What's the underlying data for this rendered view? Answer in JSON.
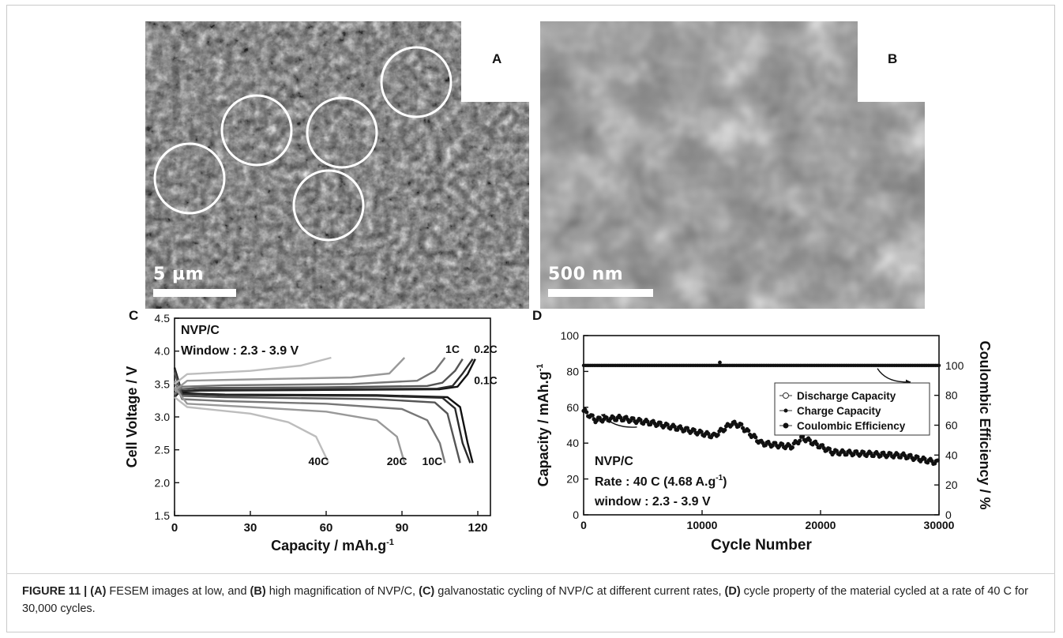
{
  "panels": {
    "a_letter": "A",
    "b_letter": "B",
    "c_letter": "C",
    "d_letter": "D",
    "a_scalebar": "5 µm",
    "b_scalebar": "500 nm"
  },
  "caption": {
    "label": "FIGURE 11 |",
    "seg1_bold": "(A)",
    "seg1_text": " FESEM images at low, and ",
    "seg2_bold": "(B)",
    "seg2_text": " high magnification of NVP/C, ",
    "seg3_bold": "(C)",
    "seg3_text": " galvanostatic cycling of NVP/C at different current rates, ",
    "seg4_bold": "(D)",
    "seg4_text": " cycle property of the material cycled at a rate of 40 C for 30,000 cycles."
  },
  "chart_data": [
    {
      "type": "line",
      "panel": "C",
      "annotation_line1": "NVP/C",
      "annotation_line2": "Window : 2.3 - 3.9 V",
      "xlabel": "Capacity / mAh.g",
      "xlabel_sup": "-1",
      "ylabel": "Cell Voltage / V",
      "xlim": [
        0,
        125
      ],
      "ylim": [
        1.5,
        4.5
      ],
      "xticks": [
        "0",
        "30",
        "60",
        "90",
        "120"
      ],
      "yticks": [
        "1.5",
        "2.0",
        "2.5",
        "3.0",
        "3.5",
        "4.0",
        "4.5"
      ],
      "series": [
        {
          "name": "0.1C",
          "color": "#111111",
          "charge": [
            [
              0,
              3.3
            ],
            [
              2,
              3.38
            ],
            [
              10,
              3.4
            ],
            [
              60,
              3.41
            ],
            [
              105,
              3.42
            ],
            [
              112,
              3.46
            ],
            [
              116,
              3.65
            ],
            [
              119,
              3.88
            ]
          ],
          "discharge": [
            [
              0,
              3.75
            ],
            [
              3,
              3.36
            ],
            [
              20,
              3.34
            ],
            [
              80,
              3.33
            ],
            [
              108,
              3.3
            ],
            [
              113,
              3.15
            ],
            [
              116,
              2.6
            ],
            [
              118,
              2.3
            ]
          ]
        },
        {
          "name": "0.2C",
          "color": "#2a2a2a",
          "charge": [
            [
              0,
              3.31
            ],
            [
              2,
              3.39
            ],
            [
              10,
              3.41
            ],
            [
              60,
              3.42
            ],
            [
              104,
              3.43
            ],
            [
              110,
              3.47
            ],
            [
              114,
              3.66
            ],
            [
              118,
              3.88
            ]
          ],
          "discharge": [
            [
              0,
              3.73
            ],
            [
              3,
              3.35
            ],
            [
              20,
              3.33
            ],
            [
              80,
              3.32
            ],
            [
              106,
              3.29
            ],
            [
              111,
              3.13
            ],
            [
              114,
              2.6
            ],
            [
              117,
              2.3
            ]
          ]
        },
        {
          "name": "1C",
          "color": "#555555",
          "charge": [
            [
              0,
              3.33
            ],
            [
              2,
              3.42
            ],
            [
              10,
              3.44
            ],
            [
              60,
              3.45
            ],
            [
              100,
              3.47
            ],
            [
              106,
              3.52
            ],
            [
              111,
              3.7
            ],
            [
              114,
              3.88
            ]
          ],
          "discharge": [
            [
              0,
              3.68
            ],
            [
              3,
              3.32
            ],
            [
              20,
              3.3
            ],
            [
              80,
              3.27
            ],
            [
              103,
              3.22
            ],
            [
              108,
              3.05
            ],
            [
              111,
              2.6
            ],
            [
              113,
              2.3
            ]
          ]
        },
        {
          "name": "10C",
          "color": "#777777",
          "charge": [
            [
              0,
              3.35
            ],
            [
              3,
              3.46
            ],
            [
              20,
              3.48
            ],
            [
              70,
              3.5
            ],
            [
              96,
              3.55
            ],
            [
              103,
              3.7
            ],
            [
              107,
              3.9
            ]
          ],
          "discharge": [
            [
              0,
              3.55
            ],
            [
              3,
              3.27
            ],
            [
              20,
              3.24
            ],
            [
              60,
              3.2
            ],
            [
              90,
              3.12
            ],
            [
              100,
              2.95
            ],
            [
              105,
              2.6
            ],
            [
              107,
              2.3
            ]
          ]
        },
        {
          "name": "20C",
          "color": "#999999",
          "charge": [
            [
              0,
              3.4
            ],
            [
              5,
              3.55
            ],
            [
              30,
              3.57
            ],
            [
              70,
              3.6
            ],
            [
              85,
              3.66
            ],
            [
              91,
              3.9
            ]
          ],
          "discharge": [
            [
              0,
              3.45
            ],
            [
              5,
              3.2
            ],
            [
              30,
              3.15
            ],
            [
              60,
              3.08
            ],
            [
              80,
              2.95
            ],
            [
              88,
              2.7
            ],
            [
              91,
              2.3
            ]
          ]
        },
        {
          "name": "40C",
          "color": "#bdbdbd",
          "charge": [
            [
              0,
              3.5
            ],
            [
              5,
              3.65
            ],
            [
              30,
              3.7
            ],
            [
              50,
              3.78
            ],
            [
              62,
              3.9
            ]
          ],
          "discharge": [
            [
              0,
              3.3
            ],
            [
              5,
              3.15
            ],
            [
              30,
              3.05
            ],
            [
              45,
              2.92
            ],
            [
              56,
              2.7
            ],
            [
              61,
              2.3
            ]
          ]
        }
      ]
    },
    {
      "type": "scatter",
      "panel": "D",
      "annotation_line1": "NVP/C",
      "annotation_line2": "Rate : 40 C (4.68 A.g",
      "annotation_line2_sup": "-1",
      "annotation_line2_end": ")",
      "annotation_line3": "window : 2.3 - 3.9 V",
      "xlabel": "Cycle Number",
      "ylabel_left": "Capacity / mAh.g",
      "ylabel_left_sup": "-1",
      "ylabel_right": "Coulombic Efficiency / %",
      "xlim": [
        0,
        30000
      ],
      "ylim_left": [
        0,
        100
      ],
      "ylim_right": [
        0,
        120
      ],
      "xticks": [
        "0",
        "10000",
        "20000",
        "30000"
      ],
      "yticks_left": [
        "0",
        "20",
        "40",
        "60",
        "80",
        "100"
      ],
      "yticks_right": [
        "0",
        "20",
        "40",
        "60",
        "80",
        "100"
      ],
      "legend_position": "center-right",
      "series": [
        {
          "name": "Discharge Capacity",
          "marker": "open-circle",
          "x": [
            0,
            1000,
            3000,
            6000,
            9000,
            11000,
            12500,
            13200,
            15000,
            17500,
            18500,
            21000,
            24000,
            27000,
            30000
          ],
          "values": [
            58,
            53,
            54,
            51,
            47,
            44,
            51,
            50,
            40,
            38,
            43,
            35,
            34,
            33,
            29
          ]
        },
        {
          "name": "Charge Capacity",
          "marker": "filled-small",
          "x": [
            0,
            1000,
            3000,
            6000,
            9000,
            11000,
            12500,
            13200,
            15000,
            17500,
            18500,
            21000,
            24000,
            27000,
            30000
          ],
          "values": [
            58,
            53,
            54,
            51,
            47,
            44,
            51,
            50,
            40,
            38,
            43,
            35,
            34,
            33,
            29
          ]
        },
        {
          "name": "Coulombic Efficiency",
          "marker": "filled-circle",
          "x": [
            0,
            5000,
            10000,
            11500,
            15000,
            20000,
            25000,
            30000
          ],
          "values": [
            100,
            100,
            100,
            102,
            100,
            100,
            100,
            100
          ]
        }
      ]
    }
  ]
}
